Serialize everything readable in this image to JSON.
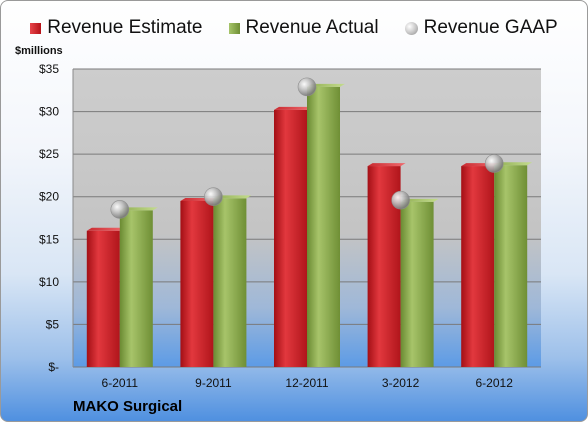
{
  "legend": {
    "estimate": "Revenue Estimate",
    "actual": "Revenue Actual",
    "gaap": "Revenue GAAP"
  },
  "colors": {
    "estimate": "#cc1f25",
    "actual": "#8aab4a",
    "gaap": "#b8b8b8"
  },
  "unit_label": "$millions",
  "company": "MAKO Surgical",
  "chart_data": {
    "type": "bar",
    "categories": [
      "6-2011",
      "9-2011",
      "12-2011",
      "3-2012",
      "6-2012"
    ],
    "series": [
      {
        "name": "Revenue Estimate",
        "values": [
          16.0,
          19.5,
          30.2,
          23.6,
          23.6
        ]
      },
      {
        "name": "Revenue Actual",
        "values": [
          18.4,
          19.8,
          32.9,
          19.4,
          23.7
        ]
      },
      {
        "name": "Revenue GAAP",
        "values": [
          18.5,
          20.0,
          32.9,
          19.6,
          23.9
        ]
      }
    ],
    "ylim": [
      0,
      35
    ],
    "yticks": [
      0,
      5,
      10,
      15,
      20,
      25,
      30,
      35
    ],
    "ytick_labels": [
      "$-",
      "$5",
      "$10",
      "$15",
      "$20",
      "$25",
      "$30",
      "$35"
    ],
    "ylabel": "$millions",
    "grid": true,
    "legend_position": "top"
  }
}
